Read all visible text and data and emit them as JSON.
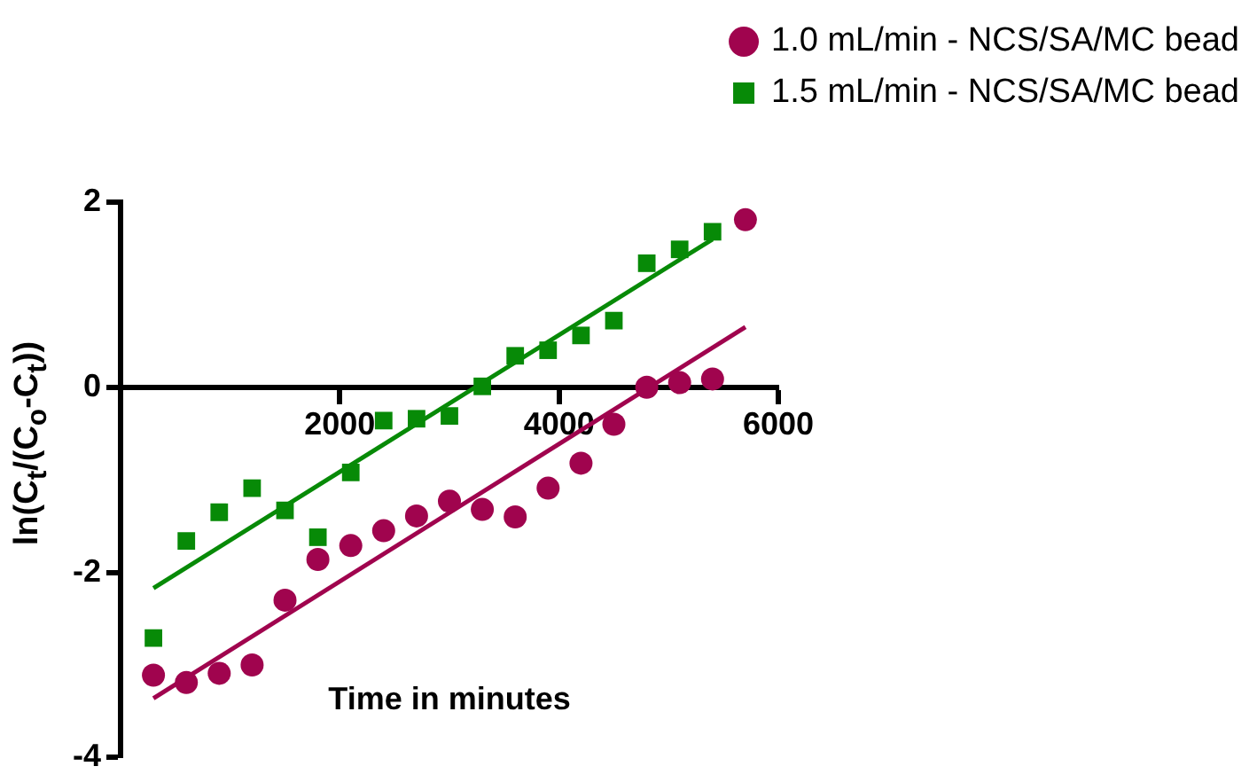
{
  "chart_data": {
    "type": "scatter",
    "xlabel": "Time in minutes",
    "ylabel": "ln(C$_{t}$/(C$_{o}$-C$_{t}$))",
    "xlim": [
      0,
      6000
    ],
    "ylim": [
      -4,
      2
    ],
    "xticks": [
      2000,
      4000,
      6000
    ],
    "yticks": [
      -4,
      -2,
      0,
      2
    ],
    "grid": false,
    "legend": "top right",
    "series": [
      {
        "name": "1.0 mL/min - NCS/SA/MC bead",
        "marker": "circle",
        "color": "#a0044e",
        "x": [
          300,
          600,
          900,
          1200,
          1500,
          1800,
          2100,
          2400,
          2700,
          3000,
          3300,
          3600,
          3900,
          4200,
          4500,
          4800,
          5100,
          5400,
          5700
        ],
        "values": [
          -3.11,
          -3.19,
          -3.09,
          -3.0,
          -2.3,
          -1.86,
          -1.71,
          -1.55,
          -1.39,
          -1.23,
          -1.32,
          -1.4,
          -1.09,
          -0.82,
          -0.4,
          0.0,
          0.05,
          0.09,
          1.81
        ]
      },
      {
        "name": "1.5 mL/min - NCS/SA/MC bead",
        "marker": "square",
        "color": "#078a07",
        "x": [
          300,
          600,
          900,
          1200,
          1500,
          1800,
          2100,
          2400,
          2700,
          3000,
          3300,
          3600,
          3900,
          4200,
          4500,
          4800,
          5100,
          5400
        ],
        "values": [
          -2.71,
          -1.66,
          -1.35,
          -1.09,
          -1.33,
          -1.62,
          -0.92,
          -0.36,
          -0.34,
          -0.31,
          0.01,
          0.34,
          0.4,
          0.56,
          0.72,
          1.34,
          1.49,
          1.68
        ]
      },
      {
        "type": "line",
        "marker": "none",
        "color": "#a0044e",
        "x": [
          300,
          5700
        ],
        "values": [
          -3.36,
          0.65
        ]
      },
      {
        "type": "line",
        "marker": "none",
        "color": "#078a07",
        "x": [
          300,
          5400
        ],
        "values": [
          -2.17,
          1.6
        ]
      }
    ]
  }
}
